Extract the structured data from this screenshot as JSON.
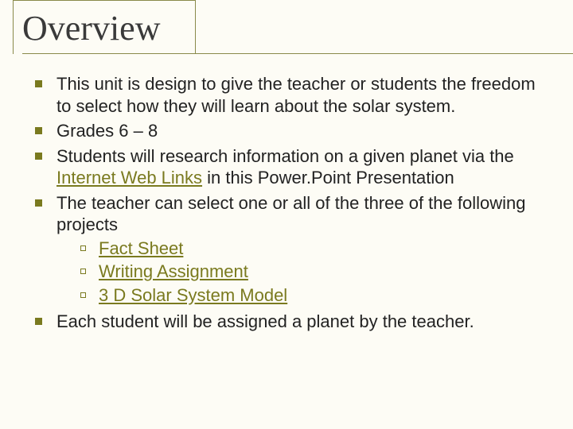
{
  "colors": {
    "background": "#fdfcf5",
    "title_text": "#3a3a3a",
    "body_text": "#222222",
    "accent": "#7a7a1f",
    "rule": "#8a8a4a"
  },
  "typography": {
    "title_font": "Times New Roman",
    "title_size_pt": 33,
    "body_font": "Arial",
    "body_size_pt": 16
  },
  "slide": {
    "title": "Overview",
    "bullets": [
      {
        "text": "This unit is design to give the teacher or students the freedom to select how they will learn about the solar system."
      },
      {
        "text": "Grades 6 – 8"
      },
      {
        "text_before": "Students will research information on a given planet via the ",
        "link_text": "Internet Web Links",
        "text_after": " in this Power.Point Presentation"
      },
      {
        "text": "The teacher can select one or all of the three of the following projects",
        "sub": [
          {
            "link_text": "Fact Sheet"
          },
          {
            "link_text": "Writing Assignment"
          },
          {
            "link_text": "3 D Solar System Model"
          }
        ]
      },
      {
        "text": "Each student will be assigned a planet by the teacher."
      }
    ]
  }
}
